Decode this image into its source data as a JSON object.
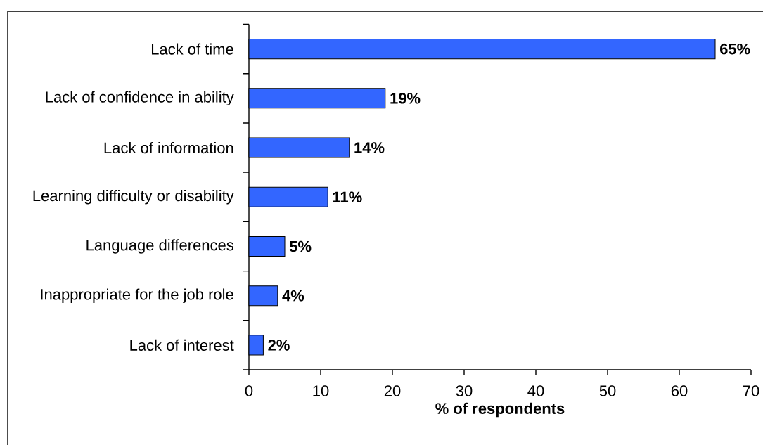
{
  "chart_data": {
    "type": "bar",
    "orientation": "horizontal",
    "categories": [
      "Lack of time",
      "Lack of confidence in ability",
      "Lack of information",
      "Learning difficulty or disability",
      "Language differences",
      "Inappropriate for the job role",
      "Lack of interest"
    ],
    "values": [
      65,
      19,
      14,
      11,
      5,
      4,
      2
    ],
    "value_labels": [
      "65%",
      "19%",
      "14%",
      "11%",
      "5%",
      "4%",
      "2%"
    ],
    "color": "#3366ff",
    "xlim": [
      0,
      70
    ],
    "xticks": [
      0,
      10,
      20,
      30,
      40,
      50,
      60,
      70
    ],
    "xlabel": "% of respondents"
  }
}
